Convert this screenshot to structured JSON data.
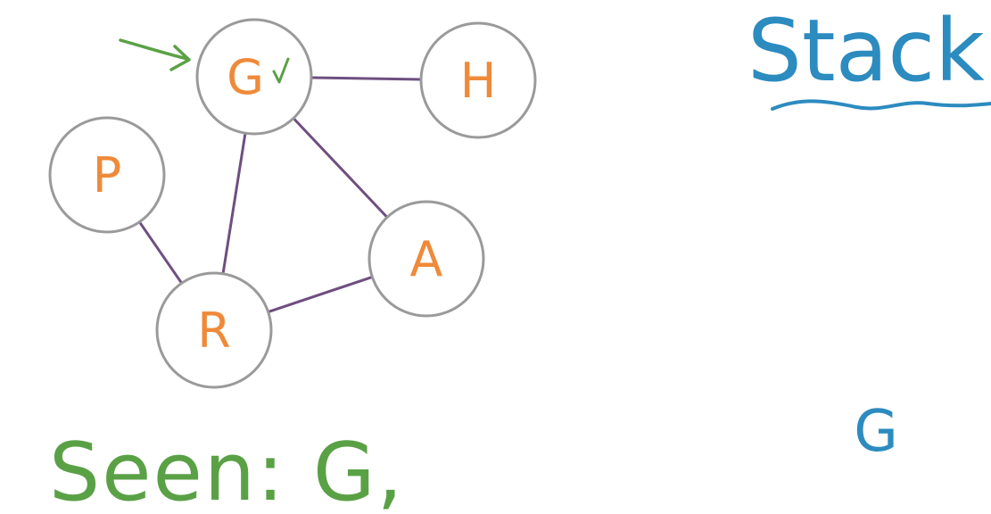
{
  "graph": {
    "nodes": [
      {
        "id": "G",
        "label": "G",
        "visited": true,
        "start": true
      },
      {
        "id": "H",
        "label": "H",
        "visited": false,
        "start": false
      },
      {
        "id": "P",
        "label": "P",
        "visited": false,
        "start": false
      },
      {
        "id": "A",
        "label": "A",
        "visited": false,
        "start": false
      },
      {
        "id": "R",
        "label": "R",
        "visited": false,
        "start": false
      }
    ],
    "edges": [
      [
        "G",
        "H"
      ],
      [
        "G",
        "A"
      ],
      [
        "G",
        "R"
      ],
      [
        "P",
        "R"
      ],
      [
        "R",
        "A"
      ]
    ]
  },
  "seen": {
    "text": "Seen: G,"
  },
  "stack": {
    "title": "Stack",
    "items": [
      "G"
    ]
  },
  "colors": {
    "node_label": "#ef8a3a",
    "node_border": "#9a9a9a",
    "edge": "#6e4f7f",
    "seen": "#5aa146",
    "stack": "#2c8bbf"
  }
}
